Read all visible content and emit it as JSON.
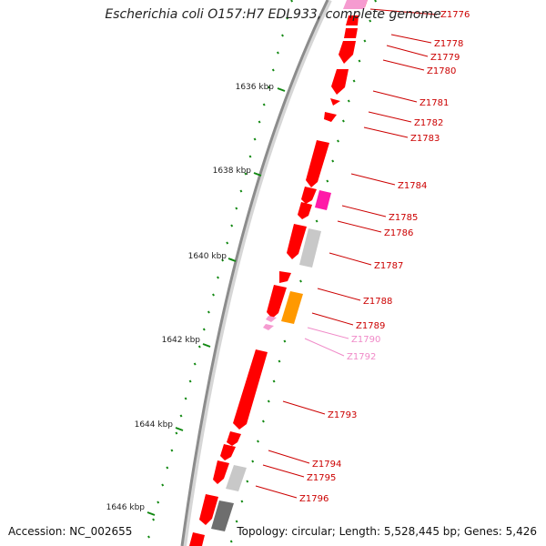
{
  "title": "Escherichia coli O157:H7 EDL933, complete genome",
  "accession": "Accession: NC_002655",
  "summary": "Topology: circular; Length: 5,528,445 bp; Genes: 5,426",
  "colors": {
    "backbone": "#8c8c8c",
    "gene_red": "#ff0000",
    "gene_pink": "#ff1aa8",
    "gene_light_pink": "#f59bd0",
    "gene_orange": "#ff9900",
    "gene_light_gray": "#c8c8c8",
    "gene_dark_gray": "#6e6e6e",
    "tick_green": "#118811",
    "label_red": "#cc0000",
    "label_pink": "#f08ac8"
  },
  "kbp_labels": [
    "1636 kbp",
    "1638 kbp",
    "1640 kbp",
    "1642 kbp",
    "1644 kbp",
    "1646 kbp"
  ],
  "gene_labels": [
    {
      "name": "Z1776",
      "color": "label_red"
    },
    {
      "name": "Z1778",
      "color": "label_red"
    },
    {
      "name": "Z1779",
      "color": "label_red"
    },
    {
      "name": "Z1780",
      "color": "label_red"
    },
    {
      "name": "Z1781",
      "color": "label_red"
    },
    {
      "name": "Z1782",
      "color": "label_red"
    },
    {
      "name": "Z1783",
      "color": "label_red"
    },
    {
      "name": "Z1784",
      "color": "label_red"
    },
    {
      "name": "Z1785",
      "color": "label_red"
    },
    {
      "name": "Z1786",
      "color": "label_red"
    },
    {
      "name": "Z1787",
      "color": "label_red"
    },
    {
      "name": "Z1788",
      "color": "label_red"
    },
    {
      "name": "Z1789",
      "color": "label_red"
    },
    {
      "name": "Z1790",
      "color": "label_pink"
    },
    {
      "name": "Z1792",
      "color": "label_pink"
    },
    {
      "name": "Z1793",
      "color": "label_red"
    },
    {
      "name": "Z1794",
      "color": "label_red"
    },
    {
      "name": "Z1795",
      "color": "label_red"
    },
    {
      "name": "Z1796",
      "color": "label_red"
    }
  ]
}
